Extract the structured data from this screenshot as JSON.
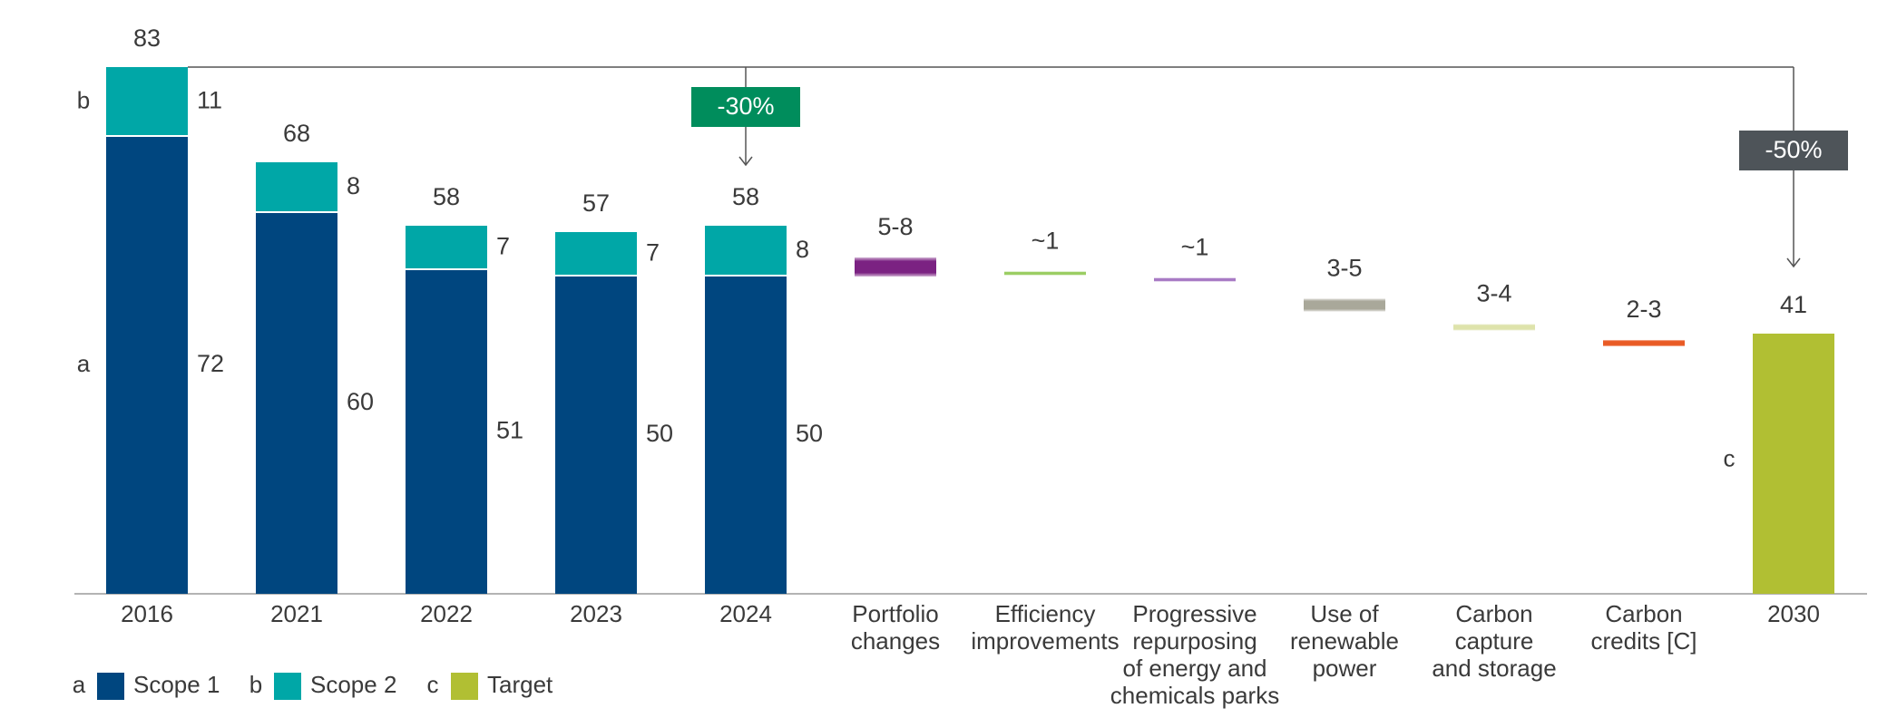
{
  "chart_data": {
    "type": "bar",
    "subtype": "stacked-waterfall",
    "title": "",
    "xlabel": "",
    "ylabel": "",
    "ylim": [
      0,
      83
    ],
    "grid": false,
    "categories": [
      "2016",
      "2021",
      "2022",
      "2023",
      "2024"
    ],
    "series": [
      {
        "key": "a",
        "name": "Scope 1",
        "values": [
          72,
          60,
          51,
          50,
          50
        ],
        "color": "#00467f"
      },
      {
        "key": "b",
        "name": "Scope 2",
        "values": [
          11,
          8,
          7,
          7,
          8
        ],
        "color": "#00a7a7"
      }
    ],
    "totals": [
      "83",
      "68",
      "58",
      "57",
      "58"
    ],
    "series_letters": {
      "a": "a",
      "b": "b"
    },
    "levers": [
      {
        "label": [
          "Portfolio",
          "changes"
        ],
        "value_label": "5-8",
        "range": [
          5,
          8
        ],
        "color": "#7b2282"
      },
      {
        "label": [
          "Efficiency",
          "improvements"
        ],
        "value_label": "~1",
        "range": [
          1,
          1
        ],
        "color": "#9acd62"
      },
      {
        "label": [
          "Progressive",
          "repurposing",
          "of energy and",
          "chemicals parks"
        ],
        "value_label": "~1",
        "range": [
          1,
          1
        ],
        "color": "#a779c4"
      },
      {
        "label": [
          "Use of",
          "renewable",
          "power"
        ],
        "value_label": "3-5",
        "range": [
          3,
          5
        ],
        "color": "#a9a89a"
      },
      {
        "label": [
          "Carbon",
          "capture",
          "and storage"
        ],
        "value_label": "3-4",
        "range": [
          3,
          4
        ],
        "color": "#dee3ab"
      },
      {
        "label": [
          "Carbon",
          "credits [C]"
        ],
        "value_label": "2-3",
        "range": [
          2,
          3
        ],
        "color": "#e95a24"
      }
    ],
    "target": {
      "category": "2030",
      "name": "Target",
      "key": "c",
      "letter": "c",
      "value": 41,
      "value_label": "41",
      "color": "#b1bf33"
    },
    "annotations": [
      {
        "from": "2016",
        "to": "2024",
        "label": "-30%",
        "color": "#008d5c"
      },
      {
        "from": "2016",
        "to": "2030",
        "label": "-50%",
        "color": "#4e5459"
      }
    ],
    "legend": {
      "placement": "bottom-left",
      "items": [
        {
          "letter": "a",
          "label": "Scope 1",
          "color": "#00467f"
        },
        {
          "letter": "b",
          "label": "Scope 2",
          "color": "#00a7a7"
        },
        {
          "letter": "c",
          "label": "Target",
          "color": "#b1bf33"
        }
      ]
    }
  }
}
